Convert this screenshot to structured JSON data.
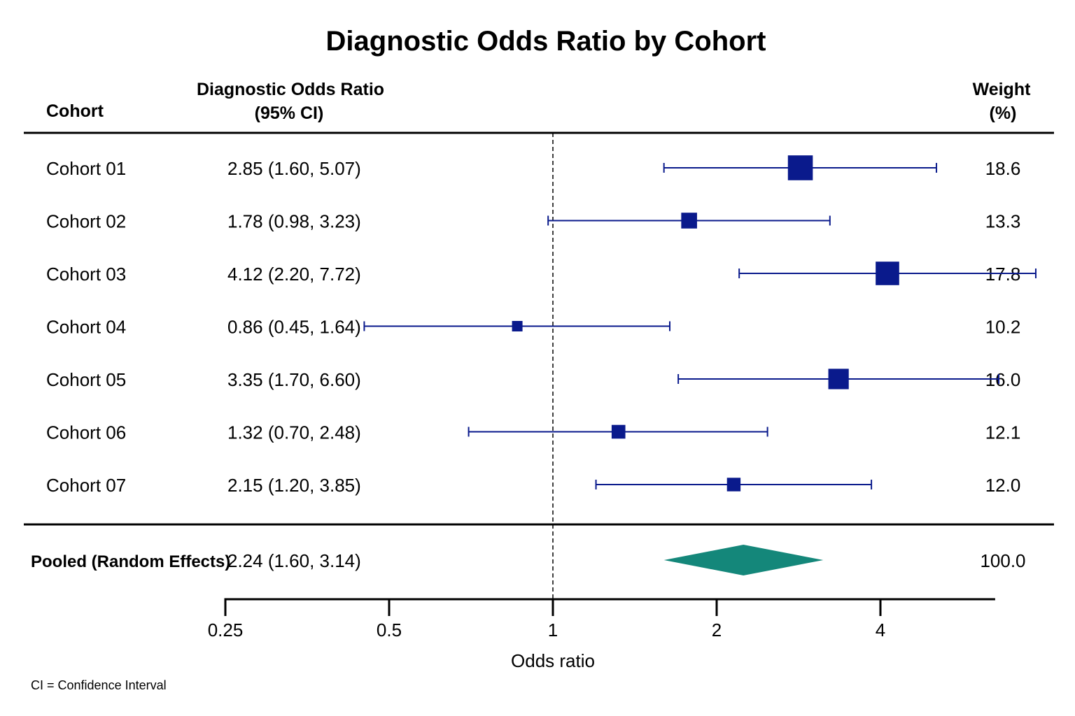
{
  "chart_data": {
    "type": "forest",
    "title": "Diagnostic Odds Ratio by Cohort",
    "columns": {
      "study": "Cohort",
      "estimate_line1": "Diagnostic Odds Ratio",
      "estimate_line2": "(95% CI)",
      "weight_line1": "Weight",
      "weight_line2": "(%)"
    },
    "studies": [
      {
        "label": "Cohort 01",
        "or": 2.85,
        "lower": 1.6,
        "upper": 5.07,
        "ci_text": "2.85 (1.60, 5.07)",
        "weight": 18.6,
        "weight_text": "18.6"
      },
      {
        "label": "Cohort 02",
        "or": 1.78,
        "lower": 0.98,
        "upper": 3.23,
        "ci_text": "1.78 (0.98, 3.23)",
        "weight": 13.3,
        "weight_text": "13.3"
      },
      {
        "label": "Cohort 03",
        "or": 4.12,
        "lower": 2.2,
        "upper": 7.72,
        "ci_text": "4.12 (2.20, 7.72)",
        "weight": 17.8,
        "weight_text": "17.8"
      },
      {
        "label": "Cohort 04",
        "or": 0.86,
        "lower": 0.45,
        "upper": 1.64,
        "ci_text": "0.86 (0.45, 1.64)",
        "weight": 10.2,
        "weight_text": "10.2"
      },
      {
        "label": "Cohort 05",
        "or": 3.35,
        "lower": 1.7,
        "upper": 6.6,
        "ci_text": "3.35 (1.70, 6.60)",
        "weight": 16.0,
        "weight_text": "16.0"
      },
      {
        "label": "Cohort 06",
        "or": 1.32,
        "lower": 0.7,
        "upper": 2.48,
        "ci_text": "1.32 (0.70, 2.48)",
        "weight": 12.1,
        "weight_text": "12.1"
      },
      {
        "label": "Cohort 07",
        "or": 2.15,
        "lower": 1.2,
        "upper": 3.85,
        "ci_text": "2.15 (1.20, 3.85)",
        "weight": 12.0,
        "weight_text": "12.0"
      }
    ],
    "pooled": {
      "label": "Pooled (Random Effects)",
      "or": 2.24,
      "lower": 1.6,
      "upper": 3.14,
      "ci_text": "2.24 (1.60, 3.14)",
      "weight_text": "100.0"
    },
    "x_axis": {
      "label": "Odds ratio",
      "scale": "log",
      "ticks": [
        0.25,
        0.5,
        1,
        2,
        4
      ],
      "tick_labels": [
        "0.25",
        "0.5",
        "1",
        "2",
        "4"
      ],
      "range": [
        0.25,
        6.5
      ],
      "reference_line": 1
    },
    "footnote": "CI = Confidence Interval",
    "colors": {
      "marker": "#0a1a8c",
      "pooled_diamond": "#14877a",
      "rules": "#000000",
      "reference_line": "#000000"
    }
  }
}
